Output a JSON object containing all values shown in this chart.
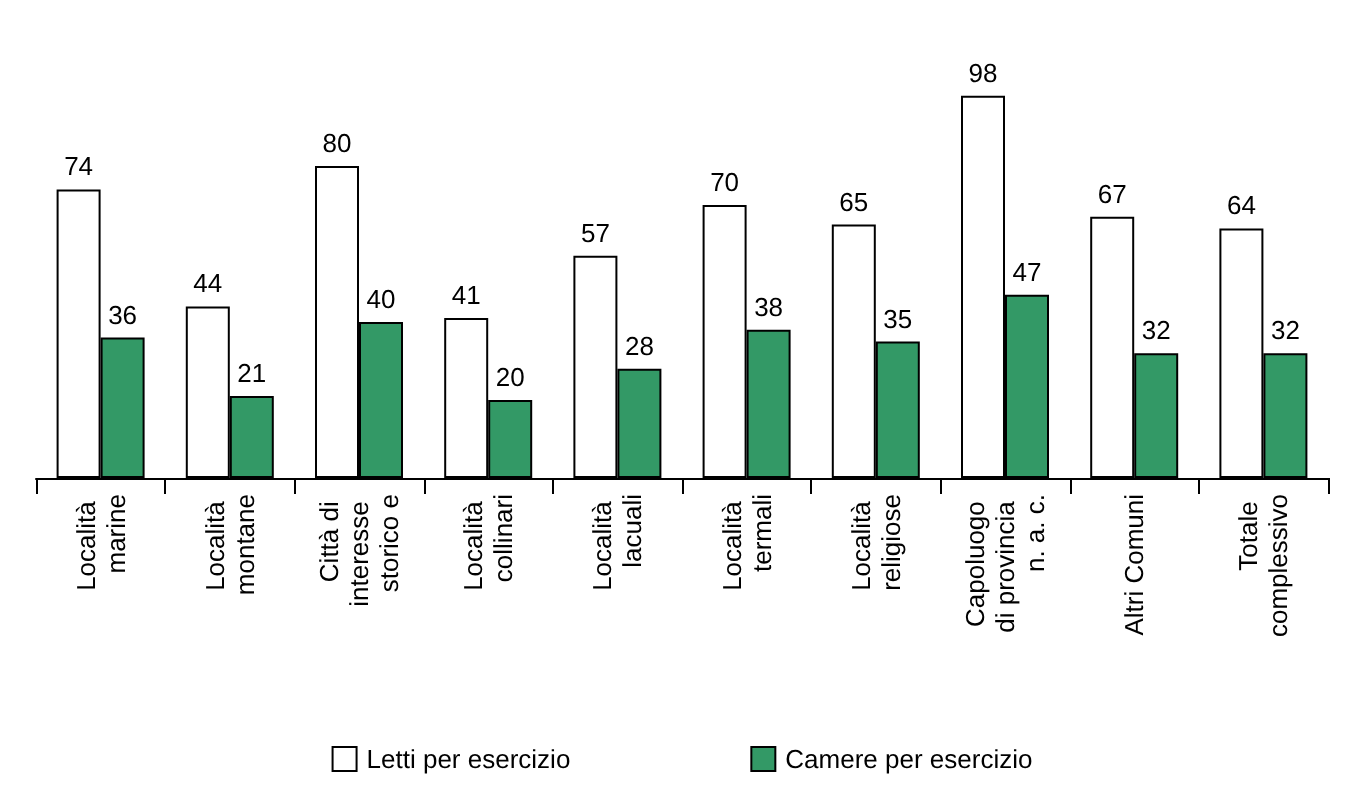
{
  "chart_data": {
    "type": "bar",
    "categories": [
      "Località marine",
      "Località montane",
      "Città di interesse storico e",
      "Località collinari",
      "Località lacuali",
      "Località termali",
      "Località religiose",
      "Capoluogo di provincia n. a. c.",
      "Altri Comuni",
      "Totale complessivo"
    ],
    "series": [
      {
        "name": "Letti per esercizio",
        "color": "#ffffff",
        "values": [
          74,
          44,
          80,
          41,
          57,
          70,
          65,
          98,
          67,
          64
        ]
      },
      {
        "name": "Camere per esercizio",
        "color": "#339966",
        "values": [
          36,
          21,
          40,
          20,
          28,
          38,
          35,
          47,
          32,
          32
        ]
      }
    ],
    "data_labels": true,
    "grid": false,
    "legend": "bottom"
  }
}
